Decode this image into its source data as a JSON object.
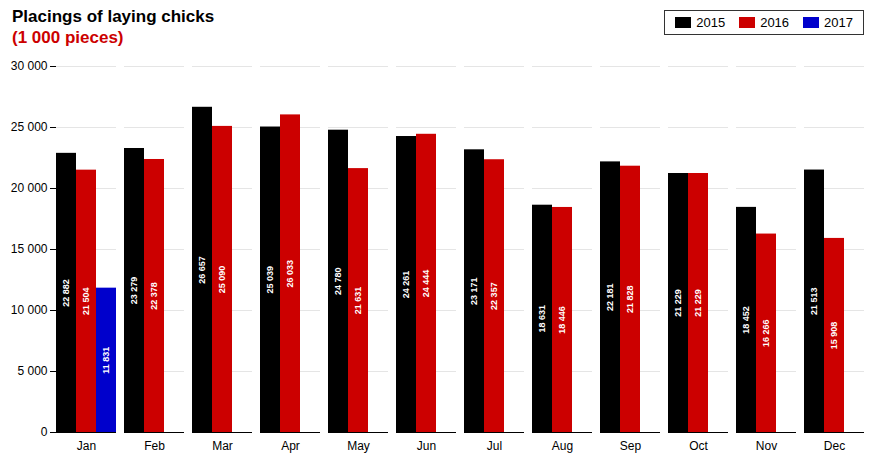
{
  "chart_data": {
    "type": "bar",
    "title": "Placings of laying chicks",
    "subtitle": "(1 000 pieces)",
    "categories": [
      "Jan",
      "Feb",
      "Mar",
      "Apr",
      "May",
      "Jun",
      "Jul",
      "Aug",
      "Sep",
      "Oct",
      "Nov",
      "Dec"
    ],
    "series": [
      {
        "name": "2015",
        "color": "#000000",
        "values": [
          22882,
          23279,
          26657,
          25039,
          24780,
          24261,
          23171,
          18631,
          22181,
          21229,
          18452,
          21513
        ],
        "value_labels": [
          "22 882",
          "23 279",
          "26 657",
          "25 039",
          "24 780",
          "24 261",
          "23 171",
          "18 631",
          "22 181",
          "21 229",
          "18 452",
          "21 513"
        ]
      },
      {
        "name": "2016",
        "color": "#cc0000",
        "values": [
          21504,
          22378,
          25090,
          26033,
          21631,
          24444,
          22357,
          18446,
          21828,
          21229,
          16266,
          15908
        ],
        "value_labels": [
          "21 504",
          "22 378",
          "25 090",
          "26 033",
          "21 631",
          "24 444",
          "22 357",
          "18 446",
          "21 828",
          "21 229",
          "16 266",
          "15 908"
        ]
      },
      {
        "name": "2017",
        "color": "#0000cc",
        "values": [
          11831,
          null,
          null,
          null,
          null,
          null,
          null,
          null,
          null,
          null,
          null,
          null
        ],
        "value_labels": [
          "11 831",
          null,
          null,
          null,
          null,
          null,
          null,
          null,
          null,
          null,
          null,
          null
        ]
      }
    ],
    "ylim": [
      0,
      30000
    ],
    "yticks": [
      0,
      {
        "value": 5000,
        "label": "5 000"
      },
      {
        "value": 10000,
        "label": "10 000"
      },
      {
        "value": 15000,
        "label": "15 000"
      },
      {
        "value": 20000,
        "label": "20 000"
      },
      {
        "value": 25000,
        "label": "25 000"
      },
      {
        "value": 30000,
        "label": "30 000"
      }
    ],
    "grid": true,
    "legend": "upper right",
    "data_labels": true
  }
}
